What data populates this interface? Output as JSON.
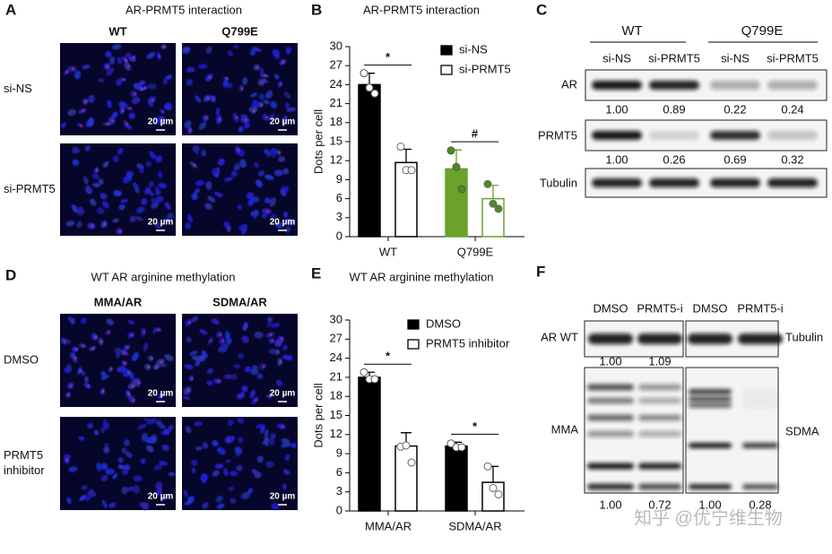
{
  "panel_a": {
    "label": "A",
    "title": "AR-PRMT5 interaction",
    "columns": [
      "WT",
      "Q799E"
    ],
    "rows": [
      [
        "si-NS"
      ],
      [
        "si-PRMT5"
      ]
    ],
    "scale_bar": "20 µm"
  },
  "panel_c": {
    "label": "C",
    "groups": [
      "WT",
      "Q799E"
    ],
    "lanes": [
      "si-NS",
      "si-PRMT5",
      "si-NS",
      "si-PRMT5"
    ],
    "blots": [
      {
        "name": "AR",
        "quant": [
          "1.00",
          "0.89",
          "0.22",
          "0.24"
        ]
      },
      {
        "name": "PRMT5",
        "quant": [
          "1.00",
          "0.26",
          "0.69",
          "0.32"
        ]
      },
      {
        "name": "Tubulin"
      }
    ]
  },
  "panel_d": {
    "label": "D",
    "title": "WT AR arginine methylation",
    "columns": [
      "MMA/AR",
      "SDMA/AR"
    ],
    "rows": [
      [
        "DMSO"
      ],
      [
        "PRMT5",
        "inhibitor"
      ]
    ],
    "scale_bar": "20 µm"
  },
  "panel_f": {
    "label": "F",
    "lanes": [
      "DMSO",
      "PRMT5-i",
      "DMSO",
      "PRMT5-i"
    ],
    "left_labels": [
      "AR WT",
      "MMA"
    ],
    "right_labels": [
      "Tubulin",
      "SDMA"
    ],
    "top_quant": [
      "1.00",
      "1.09"
    ],
    "bottom_quant": [
      "1.00",
      "0.72",
      "1.00",
      "0.28"
    ]
  },
  "chart_data": [
    {
      "type": "bar",
      "label": "B",
      "title": "AR-PRMT5 interaction",
      "ylabel": "Dots per cell",
      "categories": [
        "WT",
        "Q799E"
      ],
      "ylim": [
        0,
        30
      ],
      "yticks": [
        0,
        3,
        6,
        9,
        12,
        15,
        18,
        21,
        24,
        27,
        30
      ],
      "legend": "upper right",
      "series": [
        {
          "name": "si-NS",
          "fill": [
            "#000000",
            "#6aa22c"
          ],
          "stroke": [
            "#000000",
            "#6aa22c"
          ],
          "point_fill": [
            "#ffffff",
            "#4f8a22"
          ],
          "values": [
            24,
            10.7
          ],
          "errors": [
            1.8,
            3
          ],
          "points": [
            [
              25.8,
              23.5,
              22.6
            ],
            [
              13.6,
              11,
              7.5
            ]
          ]
        },
        {
          "name": "si-PRMT5",
          "fill": [
            "#ffffff",
            "#ffffff"
          ],
          "stroke": [
            "#000000",
            "#6aa22c"
          ],
          "point_fill": [
            "#ffffff",
            "#4f8a22"
          ],
          "values": [
            11.7,
            6
          ],
          "errors": [
            2.1,
            2.1
          ],
          "points": [
            [
              14.2,
              10.5,
              10.5
            ],
            [
              8.3,
              5.2,
              4.4
            ]
          ]
        }
      ],
      "annotations": [
        {
          "text": "*",
          "category": 0
        },
        {
          "text": "#",
          "category": 1
        }
      ]
    },
    {
      "type": "bar",
      "label": "E",
      "title": "WT AR arginine methylation",
      "ylabel": "Dots per cell",
      "categories": [
        "MMA/AR",
        "SDMA/AR"
      ],
      "ylim": [
        0,
        30
      ],
      "yticks": [
        0,
        3,
        6,
        9,
        12,
        15,
        18,
        21,
        24,
        27,
        30
      ],
      "legend": "upper center",
      "series": [
        {
          "name": "DMSO",
          "fill": [
            "#000000",
            "#000000"
          ],
          "stroke": [
            "#000000",
            "#000000"
          ],
          "point_fill": [
            "#ffffff",
            "#ffffff"
          ],
          "values": [
            21,
            10.2
          ],
          "errors": [
            0.8,
            0.6
          ],
          "points": [
            [
              21.8,
              20.7,
              20.7
            ],
            [
              10.6,
              10,
              10
            ]
          ]
        },
        {
          "name": "PRMT5 inhibitor",
          "fill": [
            "#ffffff",
            "#ffffff"
          ],
          "stroke": [
            "#000000",
            "#000000"
          ],
          "point_fill": [
            "#ffffff",
            "#ffffff"
          ],
          "values": [
            10.2,
            4.5
          ],
          "errors": [
            2.1,
            2.5
          ],
          "points": [
            [
              10.1,
              10.3,
              7.6
            ],
            [
              7,
              3.6,
              2.6
            ]
          ]
        }
      ],
      "annotations": [
        {
          "text": "*",
          "category": 0
        },
        {
          "text": "*",
          "category": 1
        }
      ]
    }
  ],
  "watermark": "知乎 @优宁维生物"
}
